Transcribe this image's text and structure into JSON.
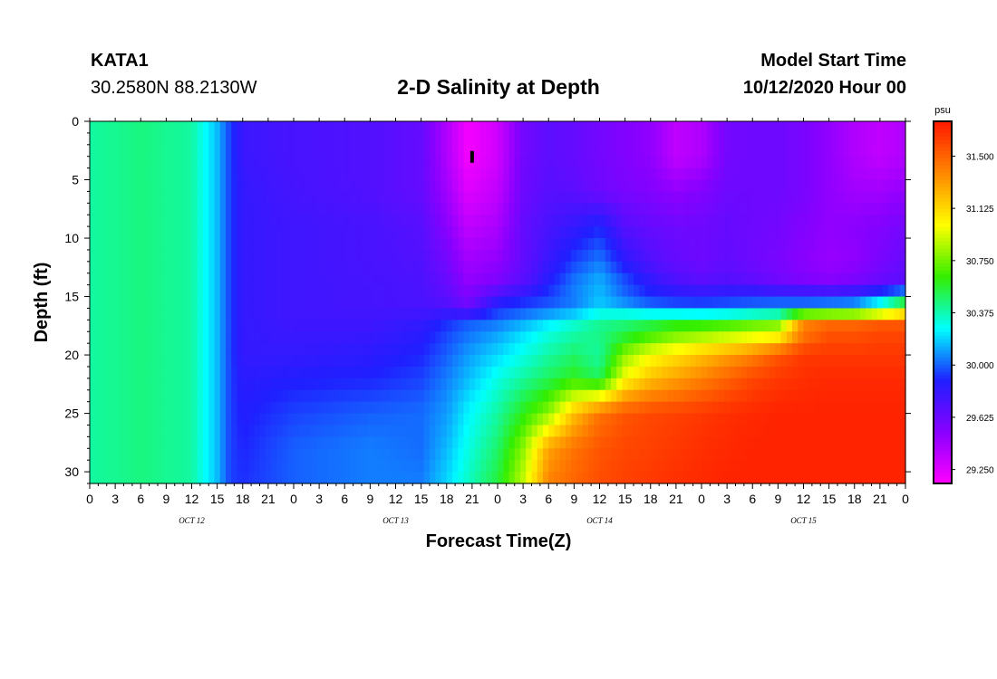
{
  "header": {
    "station": "KATA1",
    "coordinates": "30.2580N 88.2130W",
    "title": "2-D Salinity at Depth",
    "start_label": "Model Start Time",
    "start_value": "10/12/2020 Hour 00"
  },
  "colors": {
    "scale": [
      "#ff00ff",
      "#8a00ff",
      "#1f1fff",
      "#00ffff",
      "#33ee00",
      "#ffff00",
      "#ff8800",
      "#ff1a00"
    ],
    "frame": "#000000"
  },
  "chart_data": {
    "type": "heatmap",
    "title": "2-D Salinity at Depth",
    "xlabel": "Forecast Time(Z)",
    "ylabel": "Depth (ft)",
    "x_ticks": [
      "0",
      "3",
      "6",
      "9",
      "12",
      "15",
      "18",
      "21",
      "0",
      "3",
      "6",
      "9",
      "12",
      "15",
      "18",
      "21",
      "0",
      "3",
      "6",
      "9",
      "12",
      "15",
      "18",
      "21",
      "0",
      "3",
      "6",
      "9",
      "12",
      "15",
      "18",
      "21",
      "0"
    ],
    "x_hours": [
      0,
      3,
      6,
      9,
      12,
      15,
      18,
      21,
      24,
      27,
      30,
      33,
      36,
      39,
      42,
      45,
      48,
      51,
      54,
      57,
      60,
      63,
      66,
      69,
      72,
      75,
      78,
      81,
      84,
      87,
      90,
      93,
      96
    ],
    "date_labels": [
      {
        "label": "OCT 12",
        "hour": 12
      },
      {
        "label": "OCT 13",
        "hour": 36
      },
      {
        "label": "OCT 14",
        "hour": 60
      },
      {
        "label": "OCT 15",
        "hour": 84
      }
    ],
    "y_ticks": [
      0,
      5,
      10,
      15,
      20,
      25,
      30
    ],
    "ylim": [
      0,
      31
    ],
    "xlim": [
      0,
      96
    ],
    "colorbar": {
      "unit": "psu",
      "ticks": [
        "31.500",
        "31.125",
        "30.750",
        "30.375",
        "30.000",
        "29.625",
        "29.250"
      ],
      "tick_values": [
        31.5,
        31.125,
        30.75,
        30.375,
        30.0,
        29.625,
        29.25
      ],
      "range": [
        29.15,
        31.75
      ]
    },
    "depths": [
      0,
      3,
      6,
      9,
      12,
      14,
      15,
      16,
      17,
      18,
      20,
      22,
      25,
      28,
      31
    ],
    "times": [
      0,
      6,
      12,
      15,
      16.5,
      18,
      24,
      33,
      39,
      42,
      44.5,
      48,
      51,
      54,
      57,
      60,
      63,
      66,
      69,
      72,
      75,
      78,
      81,
      84,
      87,
      90,
      93,
      96
    ],
    "salinity": [
      [
        30.4,
        30.45,
        30.4,
        30.15,
        29.95,
        29.8,
        29.75,
        29.72,
        29.65,
        29.4,
        29.18,
        29.3,
        29.6,
        29.68,
        29.65,
        29.6,
        29.55,
        29.5,
        29.35,
        29.4,
        29.6,
        29.62,
        29.62,
        29.58,
        29.5,
        29.4,
        29.35,
        29.4
      ],
      [
        30.4,
        30.45,
        30.4,
        30.15,
        29.95,
        29.8,
        29.75,
        29.72,
        29.65,
        29.4,
        29.18,
        29.3,
        29.6,
        29.68,
        29.65,
        29.6,
        29.55,
        29.5,
        29.35,
        29.4,
        29.6,
        29.62,
        29.62,
        29.58,
        29.5,
        29.4,
        29.35,
        29.4
      ],
      [
        30.4,
        30.45,
        30.4,
        30.15,
        29.95,
        29.82,
        29.76,
        29.72,
        29.65,
        29.45,
        29.25,
        29.35,
        29.62,
        29.7,
        29.68,
        29.62,
        29.58,
        29.55,
        29.5,
        29.55,
        29.62,
        29.62,
        29.62,
        29.58,
        29.5,
        29.45,
        29.45,
        29.5
      ],
      [
        30.4,
        30.45,
        30.4,
        30.15,
        29.95,
        29.82,
        29.78,
        29.75,
        29.7,
        29.52,
        29.35,
        29.42,
        29.65,
        29.75,
        29.82,
        29.9,
        29.7,
        29.65,
        29.62,
        29.62,
        29.65,
        29.62,
        29.6,
        29.55,
        29.5,
        29.52,
        29.55,
        29.6
      ],
      [
        30.4,
        30.45,
        30.4,
        30.15,
        29.95,
        29.82,
        29.78,
        29.75,
        29.72,
        29.6,
        29.45,
        29.5,
        29.66,
        29.8,
        29.95,
        30.05,
        29.85,
        29.72,
        29.65,
        29.62,
        29.66,
        29.62,
        29.58,
        29.52,
        29.48,
        29.5,
        29.58,
        29.65
      ],
      [
        30.4,
        30.45,
        30.4,
        30.15,
        29.95,
        29.82,
        29.78,
        29.76,
        29.74,
        29.65,
        29.5,
        29.58,
        29.7,
        29.88,
        30.05,
        30.15,
        30.0,
        29.85,
        29.75,
        29.7,
        29.72,
        29.68,
        29.62,
        29.58,
        29.55,
        29.6,
        29.65,
        29.7
      ],
      [
        30.4,
        30.45,
        30.4,
        30.15,
        29.95,
        29.82,
        29.78,
        29.76,
        29.74,
        29.68,
        29.58,
        29.8,
        29.88,
        29.95,
        30.05,
        30.15,
        30.0,
        29.92,
        29.9,
        29.9,
        29.92,
        29.95,
        29.95,
        29.95,
        29.95,
        29.95,
        30.1,
        30.35
      ],
      [
        30.4,
        30.45,
        30.4,
        30.15,
        29.95,
        29.82,
        29.78,
        29.76,
        29.75,
        29.74,
        29.62,
        29.9,
        29.95,
        30.0,
        30.05,
        30.2,
        30.15,
        30.05,
        30.0,
        29.98,
        30.0,
        30.02,
        30.05,
        30.05,
        30.1,
        30.15,
        30.4,
        30.75
      ],
      [
        30.4,
        30.45,
        30.4,
        30.15,
        29.95,
        29.82,
        29.78,
        29.78,
        29.82,
        29.9,
        29.98,
        30.02,
        30.1,
        30.2,
        30.3,
        30.4,
        30.45,
        30.5,
        30.55,
        30.55,
        30.58,
        30.65,
        30.7,
        31.4,
        31.45,
        31.45,
        31.5,
        31.5
      ],
      [
        30.4,
        30.45,
        30.4,
        30.15,
        29.95,
        29.82,
        29.8,
        29.8,
        29.85,
        29.95,
        30.02,
        30.1,
        30.2,
        30.3,
        30.38,
        30.45,
        30.5,
        30.6,
        30.7,
        30.75,
        30.8,
        30.85,
        30.9,
        31.4,
        31.55,
        31.55,
        31.6,
        31.6
      ],
      [
        30.4,
        30.45,
        30.4,
        30.15,
        29.95,
        29.82,
        29.82,
        29.85,
        29.9,
        30.0,
        30.1,
        30.2,
        30.3,
        30.4,
        30.48,
        30.4,
        30.8,
        31.0,
        31.1,
        31.2,
        31.3,
        31.4,
        31.55,
        31.65,
        31.65,
        31.65,
        31.65,
        31.65
      ],
      [
        30.4,
        30.45,
        30.4,
        30.15,
        29.95,
        29.85,
        29.88,
        29.9,
        29.95,
        30.05,
        30.15,
        30.3,
        30.4,
        30.5,
        30.6,
        30.5,
        31.0,
        31.2,
        31.3,
        31.4,
        31.5,
        31.6,
        31.65,
        31.68,
        31.7,
        31.7,
        31.7,
        31.7
      ],
      [
        30.4,
        30.45,
        30.4,
        30.15,
        29.95,
        29.88,
        29.95,
        30.0,
        30.02,
        30.1,
        30.25,
        30.4,
        30.6,
        30.8,
        31.2,
        31.45,
        31.55,
        31.6,
        31.62,
        31.65,
        31.68,
        31.7,
        31.72,
        31.72,
        31.72,
        31.72,
        31.72,
        31.72
      ],
      [
        30.4,
        30.45,
        30.4,
        30.15,
        29.95,
        29.9,
        30.0,
        30.05,
        30.02,
        30.15,
        30.3,
        30.48,
        30.8,
        31.3,
        31.45,
        31.55,
        31.6,
        31.62,
        31.65,
        31.68,
        31.7,
        31.72,
        31.72,
        31.72,
        31.72,
        31.72,
        31.72,
        31.72
      ],
      [
        30.4,
        30.45,
        30.4,
        30.15,
        29.95,
        29.92,
        30.0,
        30.05,
        30.05,
        30.2,
        30.35,
        30.55,
        30.9,
        31.4,
        31.5,
        31.58,
        31.62,
        31.65,
        31.68,
        31.7,
        31.72,
        31.72,
        31.72,
        31.72,
        31.72,
        31.72,
        31.72,
        31.72
      ]
    ],
    "annotation": {
      "type": "marker",
      "hour": 45,
      "depth": 3
    }
  }
}
